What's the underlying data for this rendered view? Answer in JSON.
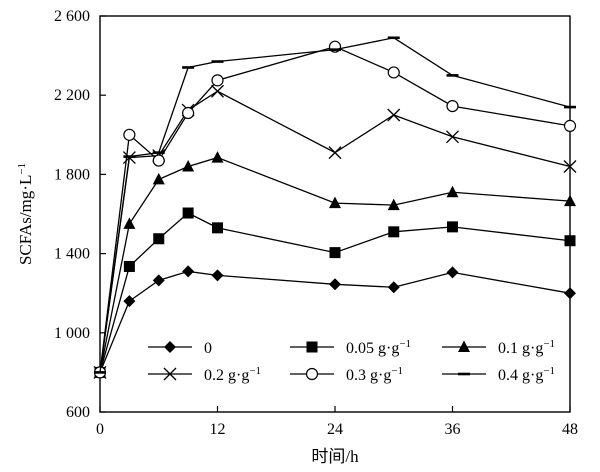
{
  "chart_data": {
    "type": "line",
    "xlabel": "时间/h",
    "ylabel": "SCFAs/mg·L",
    "ylabel_sup": "−1",
    "xlim": [
      0,
      48
    ],
    "ylim": [
      600,
      2600
    ],
    "xticks": [
      0,
      12,
      24,
      36,
      48
    ],
    "xtick_labels": [
      "0",
      "12",
      "24",
      "36",
      "48"
    ],
    "yticks": [
      600,
      1000,
      1400,
      1800,
      2200,
      2600
    ],
    "ytick_labels": [
      "600",
      "1 000",
      "1 400",
      "1 800",
      "2 200",
      "2 600"
    ],
    "grid": false,
    "legend_position": "bottom-inside",
    "x": [
      0,
      3,
      6,
      9,
      12,
      24,
      30,
      36,
      48
    ],
    "series": [
      {
        "name": "0",
        "unit": "",
        "marker": "diamond",
        "values": [
          800,
          1160,
          1265,
          1310,
          1290,
          1245,
          1230,
          1305,
          1200
        ]
      },
      {
        "name": "0.05 g·g",
        "unit": "−1",
        "marker": "square",
        "values": [
          800,
          1335,
          1475,
          1605,
          1530,
          1405,
          1510,
          1535,
          1465
        ]
      },
      {
        "name": "0.1 g·g",
        "unit": "−1",
        "marker": "triangle",
        "values": [
          800,
          1550,
          1775,
          1840,
          1885,
          1655,
          1645,
          1710,
          1665
        ]
      },
      {
        "name": "0.2 g·g",
        "unit": "−1",
        "marker": "x",
        "values": [
          800,
          1885,
          1895,
          2125,
          2220,
          1910,
          2100,
          1990,
          1840
        ]
      },
      {
        "name": "0.3 g·g",
        "unit": "−1",
        "marker": "circle",
        "values": [
          800,
          2000,
          1870,
          2110,
          2275,
          2445,
          2315,
          2145,
          2045
        ]
      },
      {
        "name": "0.4 g·g",
        "unit": "−1",
        "marker": "dash",
        "values": [
          800,
          1890,
          1910,
          2340,
          2370,
          2430,
          2490,
          2300,
          2140
        ]
      }
    ]
  }
}
